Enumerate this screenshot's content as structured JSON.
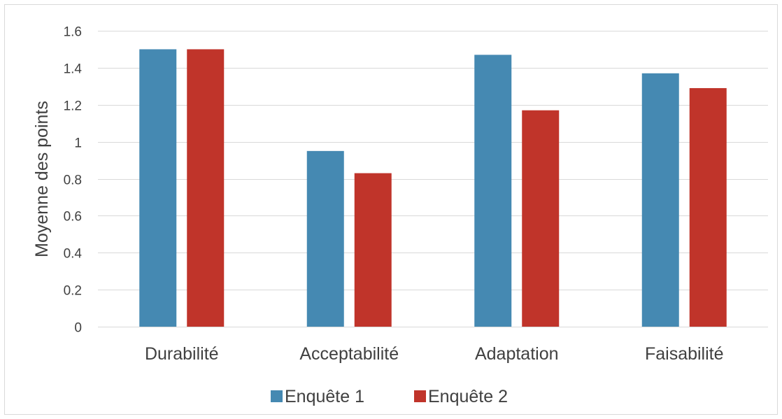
{
  "chart_data": {
    "type": "bar",
    "title": "",
    "xlabel": "",
    "ylabel": "Moyenne des points",
    "categories": [
      "Durabilité",
      "Acceptabilité",
      "Adaptation",
      "Faisabilité"
    ],
    "series": [
      {
        "name": "Enquête 1",
        "values": [
          1.5,
          0.95,
          1.47,
          1.37
        ],
        "color": "#4589B2"
      },
      {
        "name": "Enquête 2",
        "values": [
          1.5,
          0.83,
          1.17,
          1.29
        ],
        "color": "#C0342A"
      }
    ],
    "ylim": [
      0,
      1.6
    ],
    "yticks": [
      "0",
      "0.2",
      "0.4",
      "0.6",
      "0.8",
      "1",
      "1.2",
      "1.4",
      "1.6"
    ],
    "ytick_values": [
      0,
      0.2,
      0.4,
      0.6,
      0.8,
      1,
      1.2,
      1.4,
      1.6
    ],
    "grid": true,
    "legend_position": "bottom",
    "colors": {
      "grid": "#D9D9D9",
      "border": "#D9D9D9",
      "text": "#404040"
    }
  }
}
